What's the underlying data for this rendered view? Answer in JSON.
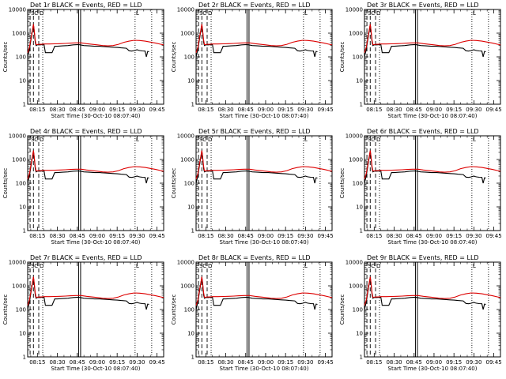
{
  "chart_data": [
    {
      "type": "line",
      "title": "Det 1r BLACK = Events, RED = LLD"
    },
    {
      "type": "line",
      "title": "Det 2r BLACK = Events, RED = LLD"
    },
    {
      "type": "line",
      "title": "Det 3r BLACK = Events, RED = LLD"
    },
    {
      "type": "line",
      "title": "Det 4r BLACK = Events, RED = LLD"
    },
    {
      "type": "line",
      "title": "Det 5r BLACK = Events, RED = LLD"
    },
    {
      "type": "line",
      "title": "Det 6r BLACK = Events, RED = LLD"
    },
    {
      "type": "line",
      "title": "Det 7r BLACK = Events, RED = LLD"
    },
    {
      "type": "line",
      "title": "Det 8r BLACK = Events, RED = LLD"
    },
    {
      "type": "line",
      "title": "Det 9r BLACK = Events, RED = LLD"
    }
  ],
  "shared": {
    "xlabel": "Start Time (30-Oct-10 08:07:40)",
    "ylabel": "Counts/sec",
    "x_ticks": [
      "08:15",
      "08:30",
      "08:45",
      "09:00",
      "09:15",
      "09:30",
      "09:45"
    ],
    "x_tick_minutes": [
      15,
      30,
      45,
      60,
      75,
      90,
      105
    ],
    "xlim_minutes": [
      7.67,
      110
    ],
    "y_scale": "log",
    "ylim": [
      1,
      10000
    ],
    "y_ticks": [
      "1",
      "10",
      "100",
      "1000",
      "10000"
    ],
    "y_tick_values": [
      1,
      10,
      100,
      1000,
      10000
    ],
    "markers": [
      {
        "letter": "S",
        "x": 9.5
      },
      {
        "letter": "C",
        "x": 12
      },
      {
        "letter": "D",
        "x": 16
      },
      {
        "letter": "L",
        "x": 88.5
      }
    ],
    "dashed_lines_x": [
      9.5,
      12,
      16
    ],
    "dotted_lines_x": [
      19,
      88.5,
      101
    ],
    "solid_lines_x": [
      46,
      47.5
    ],
    "series": [
      {
        "name": "Events",
        "color": "#000000",
        "x": [
          7.67,
          9,
          10.5,
          12,
          12.6,
          13.4,
          14,
          15,
          16,
          17,
          19,
          20,
          21,
          22,
          24,
          26,
          28,
          30,
          34,
          38,
          42,
          46,
          50,
          54,
          58,
          62,
          66,
          70,
          72,
          75,
          78,
          82,
          84,
          86,
          88,
          90,
          91,
          92,
          94,
          96,
          97,
          98,
          99
        ],
        "y": [
          100,
          200,
          700,
          2300,
          1200,
          400,
          300,
          320,
          320,
          320,
          330,
          330,
          150,
          150,
          150,
          150,
          280,
          280,
          290,
          300,
          320,
          330,
          300,
          290,
          280,
          280,
          270,
          260,
          255,
          250,
          240,
          230,
          180,
          175,
          185,
          200,
          190,
          185,
          178,
          175,
          100,
          170,
          165
        ]
      },
      {
        "name": "LLD",
        "color": "#dd0000",
        "x": [
          7.67,
          9,
          10.5,
          12,
          12.6,
          13.4,
          14,
          15,
          16,
          18,
          20,
          24,
          28,
          32,
          36,
          40,
          44,
          48,
          52,
          56,
          60,
          64,
          68,
          72,
          76,
          80,
          84,
          88,
          92,
          96,
          100,
          104,
          108,
          110
        ],
        "y": [
          150,
          250,
          800,
          2400,
          1300,
          500,
          330,
          330,
          340,
          340,
          350,
          350,
          355,
          360,
          370,
          380,
          390,
          390,
          360,
          340,
          320,
          300,
          290,
          300,
          340,
          410,
          460,
          500,
          490,
          460,
          420,
          380,
          340,
          320
        ]
      }
    ]
  }
}
